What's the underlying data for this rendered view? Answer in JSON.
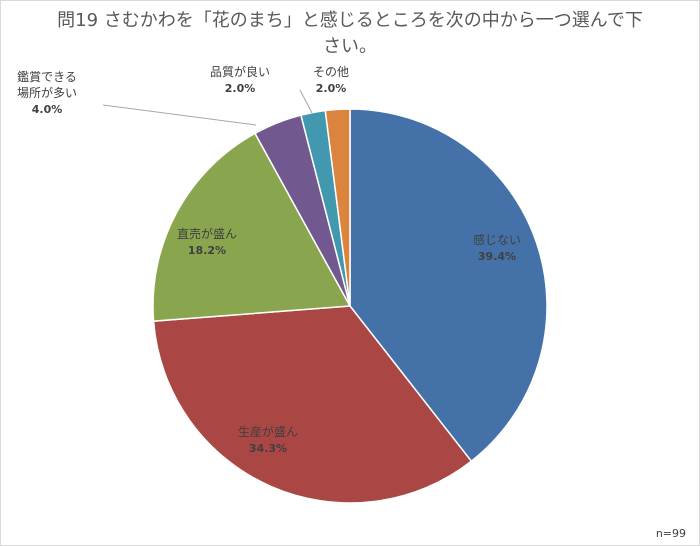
{
  "chart_data": {
    "type": "pie",
    "title": "問19 さむかわを「花のまち」と感じるところを次の中から一つ選んで下さい。",
    "categories": [
      "感じない",
      "生産が盛ん",
      "直売が盛ん",
      "鑑賞できる場所が多い",
      "品質が良い",
      "その他"
    ],
    "values": [
      39.4,
      34.3,
      18.2,
      4.0,
      2.0,
      2.0
    ],
    "percent_labels": [
      "39.4%",
      "34.3%",
      "18.2%",
      "4.0%",
      "2.0%",
      "2.0%"
    ],
    "colors": [
      "#4472a8",
      "#aa4643",
      "#89a54e",
      "#71588f",
      "#4198af",
      "#db843d"
    ],
    "start_angle_deg": 0,
    "direction": "clockwise",
    "note": "n=99"
  }
}
